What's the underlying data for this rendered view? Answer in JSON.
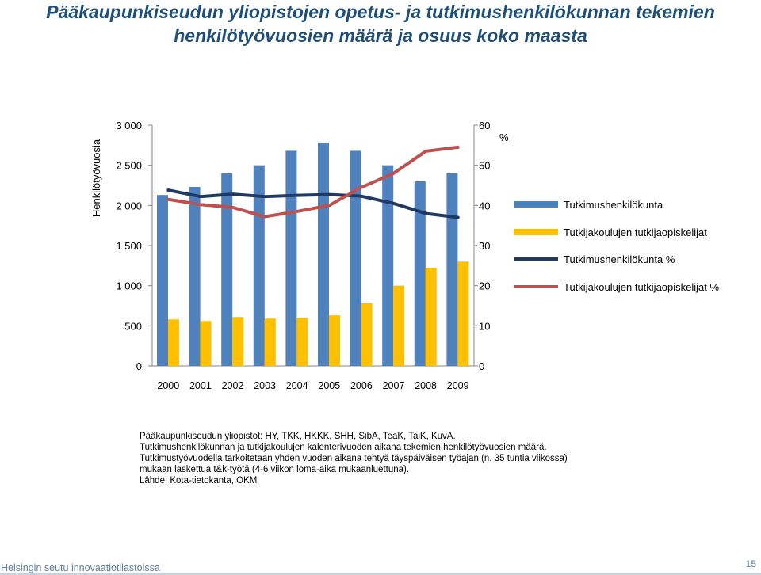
{
  "title_lines": [
    "Pääkaupunkiseudun yliopistojen opetus- ja tutkimushenkilökunnan tekemien",
    "henkilötyövuosien määrä ja osuus koko maasta"
  ],
  "chart_data": {
    "type": "bar",
    "categories": [
      "2000",
      "2001",
      "2002",
      "2003",
      "2004",
      "2005",
      "2006",
      "2007",
      "2008",
      "2009"
    ],
    "series": [
      {
        "name": "Tutkimushenkilökunta",
        "kind": "bar",
        "axis": "left",
        "color": "#4f81bd",
        "values": [
          2130,
          2230,
          2400,
          2500,
          2680,
          2780,
          2680,
          2500,
          2300,
          2400
        ]
      },
      {
        "name": "Tutkijakoulujen tutkijaopiskelijat",
        "kind": "bar",
        "axis": "left",
        "color": "#ffc000",
        "values": [
          580,
          560,
          610,
          590,
          600,
          630,
          780,
          1000,
          1220,
          1300
        ]
      },
      {
        "name": "Tutkimushenkilökunta %",
        "kind": "line",
        "axis": "right",
        "color": "#1f3864",
        "values": [
          43.8,
          42.2,
          42.8,
          42.2,
          42.5,
          42.7,
          42.3,
          40.5,
          38.0,
          37.0
        ]
      },
      {
        "name": "Tutkijakoulujen tutkijaopiskelijat %",
        "kind": "line",
        "axis": "right",
        "color": "#c0504d",
        "values": [
          41.5,
          40.2,
          39.5,
          37.2,
          38.5,
          40.0,
          44.5,
          48.0,
          53.5,
          54.5
        ]
      }
    ],
    "ylabel": "Henkilötyövuosia",
    "y2label": "%",
    "ylim": [
      0,
      3000
    ],
    "y2lim": [
      0,
      60
    ],
    "yticks": [
      "0",
      "500",
      "1 000",
      "1 500",
      "2 000",
      "2 500",
      "3 000"
    ],
    "y2ticks": [
      "0",
      "10",
      "20",
      "30",
      "40",
      "50",
      "60"
    ],
    "legend_position": "right"
  },
  "notes": [
    "Pääkaupunkiseudun yliopistot: HY, TKK, HKKK, SHH, SibA, TeaK, TaiK, KuvA.",
    "Tutkimushenkilökunnan ja tutkijakoulujen kalenterivuoden aikana tekemien henkilötyövuosien määrä.",
    "Tutkimustyövuodella tarkoitetaan yhden vuoden aikana tehtyä täyspäiväisen työajan (n. 35 tuntia viikossa)",
    "mukaan laskettua t&k-työtä (4-6 viikon loma-aika mukaanluettuna).",
    "Lähde: Kota-tietokanta, OKM"
  ],
  "footer": {
    "source_label": "Helsingin seutu innovaatiotilastoissa",
    "page_number": "15"
  }
}
